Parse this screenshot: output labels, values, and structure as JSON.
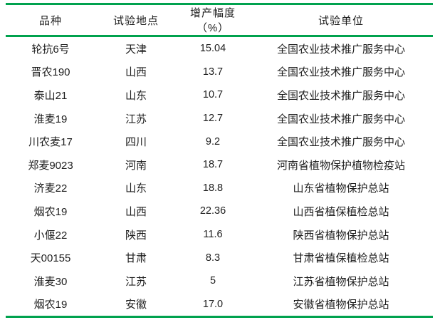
{
  "table": {
    "columns": [
      "品种",
      "试验地点",
      "增产幅度（%）",
      "试验单位"
    ],
    "rows": [
      [
        "轮抗6号",
        "天津",
        "15.04",
        "全国农业技术推广服务中心"
      ],
      [
        "晋农190",
        "山西",
        "13.7",
        "全国农业技术推广服务中心"
      ],
      [
        "泰山21",
        "山东",
        "10.7",
        "全国农业技术推广服务中心"
      ],
      [
        "淮麦19",
        "江苏",
        "12.7",
        "全国农业技术推广服务中心"
      ],
      [
        "川农麦17",
        "四川",
        "9.2",
        "全国农业技术推广服务中心"
      ],
      [
        "郑麦9023",
        "河南",
        "18.7",
        "河南省植物保护植物检疫站"
      ],
      [
        "济麦22",
        "山东",
        "18.8",
        "山东省植物保护总站"
      ],
      [
        "烟农19",
        "山西",
        "22.36",
        "山西省植保植检总站"
      ],
      [
        "小偃22",
        "陕西",
        "11.6",
        "陕西省植物保护总站"
      ],
      [
        "天00155",
        "甘肃",
        "8.3",
        "甘肃省植保植检总站"
      ],
      [
        "淮麦30",
        "江苏",
        "5",
        "江苏省植物保护总站"
      ],
      [
        "烟农19",
        "安徽",
        "17.0",
        "安徽省植物保护总站"
      ]
    ]
  },
  "colors": {
    "accent_green": "#00A24E",
    "text": "#1D1D1D"
  }
}
